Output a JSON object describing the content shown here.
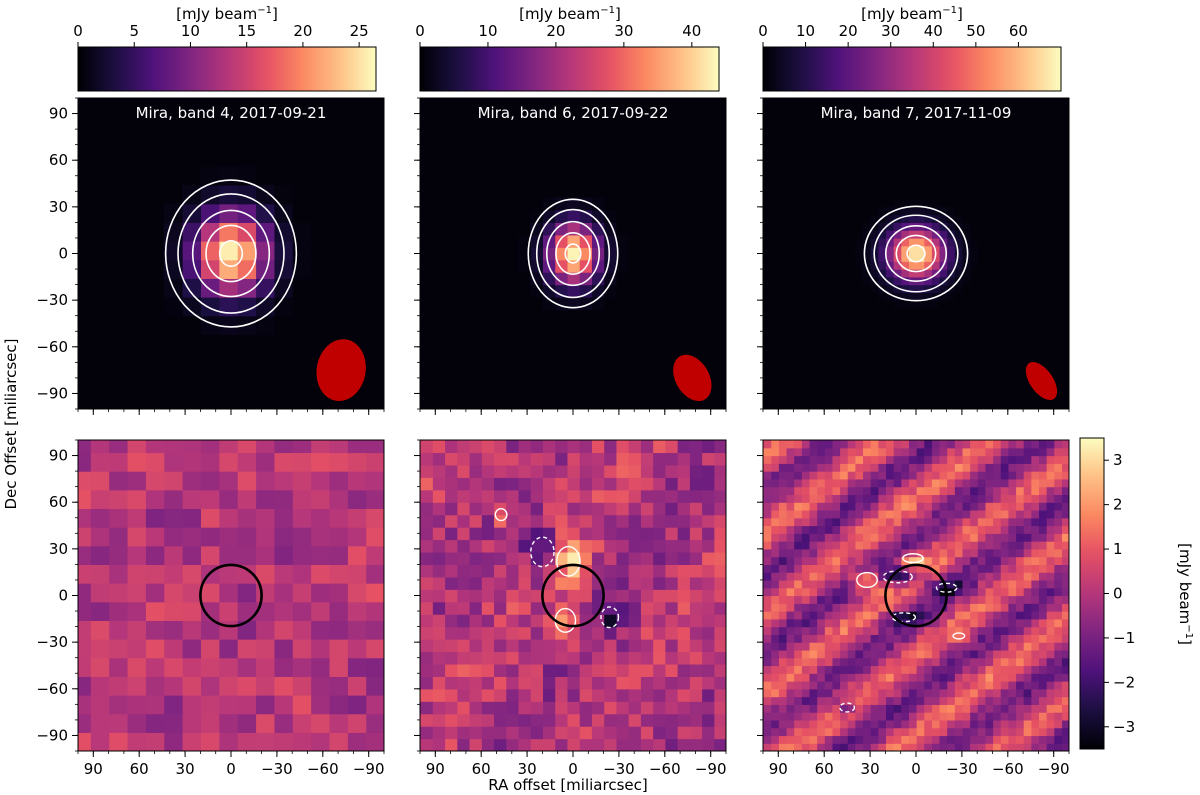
{
  "chart_data": {
    "type": "heatmap",
    "xlabel": "RA offset [miliarcsec]",
    "ylabel": "Dec Offset [miliarcsec]",
    "xlim": [
      100,
      -100
    ],
    "ylim": [
      -100,
      100
    ],
    "xticks": [
      90,
      60,
      30,
      0,
      -30,
      -60,
      -90
    ],
    "yticks": [
      90,
      60,
      30,
      0,
      -30,
      -60,
      -90
    ],
    "xtick_labels": [
      "90",
      "60",
      "30",
      "0",
      "−30",
      "−60",
      "−90"
    ],
    "ytick_labels": [
      "90",
      "60",
      "30",
      "0",
      "−30",
      "−60",
      "−90"
    ],
    "colormap": "magma",
    "top_colorbars": [
      {
        "label": "[mJy beam$^{-1}$]",
        "label_text": "[mJy beam",
        "label_sup": "−1",
        "label_close": "]",
        "range": [
          0,
          26.5
        ],
        "ticks": [
          0,
          5,
          10,
          15,
          20,
          25
        ]
      },
      {
        "label": "[mJy beam$^{-1}$]",
        "label_text": "[mJy beam",
        "label_sup": "−1",
        "label_close": "]",
        "range": [
          0,
          44
        ],
        "ticks": [
          0,
          10,
          20,
          30,
          40
        ]
      },
      {
        "label": "[mJy beam$^{-1}$]",
        "label_text": "[mJy beam",
        "label_sup": "−1",
        "label_close": "]",
        "range": [
          0,
          70
        ],
        "ticks": [
          0,
          10,
          20,
          30,
          40,
          50,
          60
        ]
      }
    ],
    "residual_colorbar": {
      "label_text": "[mJy beam",
      "label_sup": "−1",
      "label_close": "]",
      "range": [
        -3.5,
        3.5
      ],
      "ticks": [
        3,
        2,
        1,
        0,
        -1,
        -2,
        -3
      ],
      "tick_labels": [
        "3",
        "2",
        "1",
        "0",
        "−1",
        "−2",
        "−3"
      ]
    },
    "image_panels": [
      {
        "title": "Mira, band 4, 2017-09-21",
        "peak_mJy": 25.5,
        "center": [
          0,
          0
        ],
        "source_fwhm_mas": [
          38,
          42
        ],
        "contour_levels_frac": [
          0.03,
          0.1,
          0.3,
          0.6,
          0.9
        ],
        "beam": {
          "ra": -72,
          "dec": -75,
          "major_mas": 40,
          "minor_mas": 32,
          "pa_deg": 10
        }
      },
      {
        "title": "Mira, band 6, 2017-09-22",
        "peak_mJy": 43,
        "center": [
          0,
          0
        ],
        "source_fwhm_mas": [
          26,
          31
        ],
        "contour_levels_frac": [
          0.03,
          0.1,
          0.3,
          0.6,
          0.9
        ],
        "beam": {
          "ra": -78,
          "dec": -80,
          "major_mas": 32,
          "minor_mas": 22,
          "pa_deg": -30
        }
      },
      {
        "title": "Mira, band 7, 2017-11-09",
        "peak_mJy": 68,
        "center": [
          0,
          0
        ],
        "source_fwhm_mas": [
          30,
          27
        ],
        "contour_levels_frac": [
          0.03,
          0.1,
          0.3,
          0.6,
          0.9
        ],
        "beam": {
          "ra": -82,
          "dec": -82,
          "major_mas": 28,
          "minor_mas": 15,
          "pa_deg": -35
        }
      }
    ],
    "residual_panels": [
      {
        "circle_radius_mas": 20,
        "features": []
      },
      {
        "circle_radius_mas": 20,
        "features": [
          {
            "ra": 20,
            "dec": 28,
            "amp": -2.6,
            "sx": 8,
            "sy": 10
          },
          {
            "ra": 3,
            "dec": 22,
            "amp": 2.6,
            "sx": 8,
            "sy": 10
          },
          {
            "ra": 5,
            "dec": -16,
            "amp": 2.2,
            "sx": 7,
            "sy": 8
          },
          {
            "ra": -24,
            "dec": -14,
            "amp": -2.4,
            "sx": 6,
            "sy": 7
          },
          {
            "ra": 47,
            "dec": 52,
            "amp": 1.6,
            "sx": 4,
            "sy": 4
          }
        ]
      },
      {
        "circle_radius_mas": 20,
        "features": [
          {
            "ra": 32,
            "dec": 10,
            "amp": 2.8,
            "sx": 7,
            "sy": 5
          },
          {
            "ra": 12,
            "dec": 12,
            "amp": -2.8,
            "sx": 10,
            "sy": 4
          },
          {
            "ra": 2,
            "dec": 24,
            "amp": 2.3,
            "sx": 7,
            "sy": 3
          },
          {
            "ra": -20,
            "dec": 5,
            "amp": -2.2,
            "sx": 7,
            "sy": 3
          },
          {
            "ra": 8,
            "dec": -14,
            "amp": -2.2,
            "sx": 8,
            "sy": 3
          },
          {
            "ra": -28,
            "dec": -26,
            "amp": 2,
            "sx": 4,
            "sy": 2
          },
          {
            "ra": 45,
            "dec": -72,
            "amp": -2.1,
            "sx": 5,
            "sy": 3
          }
        ]
      }
    ]
  }
}
